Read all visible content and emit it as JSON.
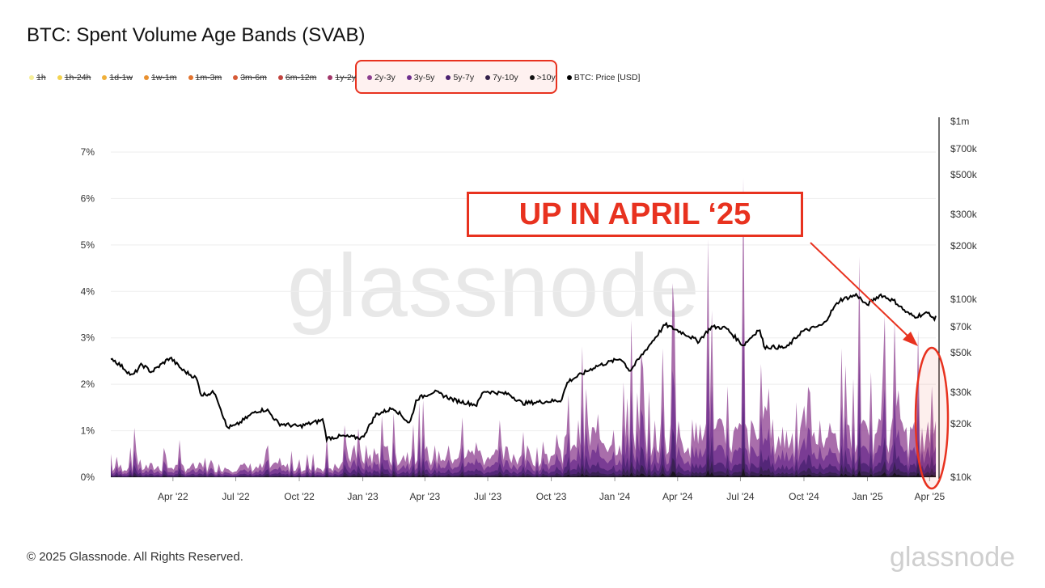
{
  "title": "BTC: Spent Volume Age Bands (SVAB)",
  "legend": [
    {
      "label": "1h",
      "color": "#f6ef9a",
      "hidden": true
    },
    {
      "label": "1h-24h",
      "color": "#f3d34f",
      "hidden": true
    },
    {
      "label": "1d-1w",
      "color": "#f0b03a",
      "hidden": true
    },
    {
      "label": "1w-1m",
      "color": "#e99130",
      "hidden": true
    },
    {
      "label": "1m-3m",
      "color": "#e2742f",
      "hidden": true
    },
    {
      "label": "3m-6m",
      "color": "#d65b37",
      "hidden": true
    },
    {
      "label": "6m-12m",
      "color": "#c2443f",
      "hidden": true
    },
    {
      "label": "1y-2y",
      "color": "#a2376a",
      "hidden": true
    },
    {
      "label": "2y-3y",
      "color": "#8c3d8f",
      "hidden": false
    },
    {
      "label": "3y-5y",
      "color": "#6e2f8e",
      "hidden": false
    },
    {
      "label": "5y-7y",
      "color": "#4a2070",
      "hidden": false
    },
    {
      "label": "7y-10y",
      "color": "#33214a",
      "hidden": false
    },
    {
      "label": ">10y",
      "color": "#111111",
      "hidden": false
    },
    {
      "label": "BTC: Price [USD]",
      "color": "#000000",
      "hidden": false
    }
  ],
  "watermark": "glassnode",
  "callout": "UP IN APRIL ‘25",
  "footer": "© 2025 Glassnode. All Rights Reserved.",
  "logo": "glassnode",
  "colors": {
    "accent": "#e8321f",
    "price_line": "#000000"
  },
  "chart_data": {
    "type": "area",
    "x_ticks": [
      "Apr '22",
      "Jul '22",
      "Oct '22",
      "Jan '23",
      "Apr '23",
      "Jul '23",
      "Oct '23",
      "Jan '24",
      "Apr '24",
      "Jul '24",
      "Oct '24",
      "Jan '25",
      "Apr '25"
    ],
    "xlim": [
      "2022-01-01",
      "2025-04-10"
    ],
    "y_left": {
      "label": "",
      "ticks": [
        "0%",
        "1%",
        "2%",
        "3%",
        "4%",
        "5%",
        "6%",
        "7%"
      ],
      "range": [
        0,
        7
      ]
    },
    "y_right": {
      "label": "",
      "scale": "log",
      "ticks": [
        "$10k",
        "$20k",
        "$30k",
        "$50k",
        "$70k",
        "$100k",
        "$200k",
        "$300k",
        "$500k",
        "$700k",
        "$1m"
      ],
      "range": [
        10000,
        1000000
      ]
    },
    "price_series": {
      "name": "BTC: Price [USD]",
      "points": [
        [
          "2022-01-01",
          47000
        ],
        [
          "2022-01-20",
          41000
        ],
        [
          "2022-02-01",
          37000
        ],
        [
          "2022-02-15",
          43000
        ],
        [
          "2022-03-01",
          39000
        ],
        [
          "2022-03-28",
          47000
        ],
        [
          "2022-04-15",
          40000
        ],
        [
          "2022-05-05",
          36000
        ],
        [
          "2022-05-12",
          29000
        ],
        [
          "2022-06-01",
          30000
        ],
        [
          "2022-06-13",
          22000
        ],
        [
          "2022-06-18",
          19000
        ],
        [
          "2022-07-01",
          19500
        ],
        [
          "2022-07-30",
          23500
        ],
        [
          "2022-08-15",
          24000
        ],
        [
          "2022-09-01",
          20000
        ],
        [
          "2022-10-01",
          19300
        ],
        [
          "2022-11-05",
          21000
        ],
        [
          "2022-11-09",
          16500
        ],
        [
          "2022-12-01",
          17000
        ],
        [
          "2022-12-31",
          16600
        ],
        [
          "2023-01-20",
          22500
        ],
        [
          "2023-02-15",
          24500
        ],
        [
          "2023-03-10",
          20000
        ],
        [
          "2023-03-20",
          27500
        ],
        [
          "2023-04-14",
          30300
        ],
        [
          "2023-05-15",
          27000
        ],
        [
          "2023-06-15",
          25500
        ],
        [
          "2023-06-25",
          30500
        ],
        [
          "2023-08-01",
          29300
        ],
        [
          "2023-08-20",
          26000
        ],
        [
          "2023-09-15",
          26500
        ],
        [
          "2023-10-15",
          27000
        ],
        [
          "2023-10-25",
          34500
        ],
        [
          "2023-12-05",
          42000
        ],
        [
          "2024-01-10",
          46500
        ],
        [
          "2024-01-23",
          39500
        ],
        [
          "2024-02-15",
          52000
        ],
        [
          "2024-03-14",
          72000
        ],
        [
          "2024-04-15",
          63000
        ],
        [
          "2024-05-01",
          58000
        ],
        [
          "2024-05-20",
          70000
        ],
        [
          "2024-06-10",
          69000
        ],
        [
          "2024-07-05",
          55000
        ],
        [
          "2024-07-28",
          68000
        ],
        [
          "2024-08-05",
          54000
        ],
        [
          "2024-09-06",
          53500
        ],
        [
          "2024-09-27",
          65500
        ],
        [
          "2024-10-29",
          72000
        ],
        [
          "2024-11-12",
          88000
        ],
        [
          "2024-11-22",
          99000
        ],
        [
          "2024-12-17",
          106000
        ],
        [
          "2024-12-30",
          92500
        ],
        [
          "2025-01-20",
          106000
        ],
        [
          "2025-02-10",
          97000
        ],
        [
          "2025-02-27",
          84000
        ],
        [
          "2025-03-10",
          80000
        ],
        [
          "2025-04-01",
          84000
        ],
        [
          "2025-04-07",
          76000
        ],
        [
          "2025-04-10",
          81000
        ]
      ]
    },
    "svab_series": {
      "name": "2y-3y, 3y-5y, 5y-7y, 7y-10y, >10y (stacked)",
      "peaks": [
        [
          "2022-01-01",
          0.5
        ],
        [
          "2022-02-05",
          1.45
        ],
        [
          "2022-03-20",
          1.0
        ],
        [
          "2022-04-10",
          0.9
        ],
        [
          "2022-09-15",
          0.2
        ],
        [
          "2022-11-10",
          0.9
        ],
        [
          "2022-12-20",
          0.7
        ],
        [
          "2023-03-15",
          1.2
        ],
        [
          "2023-06-15",
          1.0
        ],
        [
          "2023-09-20",
          1.15
        ],
        [
          "2023-11-20",
          2.3
        ],
        [
          "2024-01-25",
          3.4
        ],
        [
          "2024-03-10",
          3.3
        ],
        [
          "2024-03-26",
          6.9
        ],
        [
          "2024-05-15",
          5.2
        ],
        [
          "2024-05-20",
          4.5
        ],
        [
          "2024-07-05",
          6.8
        ],
        [
          "2024-08-10",
          3.0
        ],
        [
          "2024-12-20",
          4.8
        ],
        [
          "2025-01-25",
          5.1
        ],
        [
          "2025-02-10",
          4.4
        ],
        [
          "2025-03-15",
          3.5
        ],
        [
          "2025-04-05",
          2.5
        ]
      ]
    }
  }
}
